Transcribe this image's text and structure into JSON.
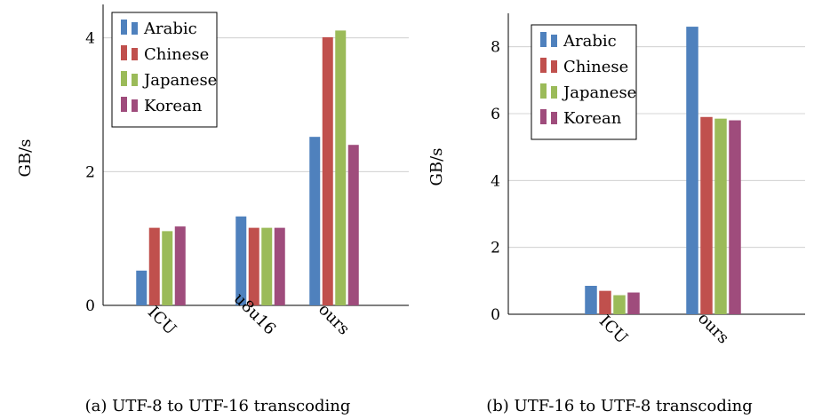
{
  "chart_data": [
    {
      "type": "bar",
      "caption": "(a) UTF-8 to UTF-16 transcoding",
      "ylabel": "GB/s",
      "xlabel": "",
      "ylim": [
        0,
        4.5
      ],
      "yticks": [
        0,
        2,
        4
      ],
      "grid": true,
      "legend_position": "top-left",
      "categories": [
        "ICU",
        "u8u16",
        "ours"
      ],
      "series": [
        {
          "name": "Arabic",
          "color": "#4f81bd",
          "values": [
            0.52,
            1.33,
            2.52
          ]
        },
        {
          "name": "Chinese",
          "color": "#c0504d",
          "values": [
            1.16,
            1.16,
            4.01
          ]
        },
        {
          "name": "Japanese",
          "color": "#9bbb59",
          "values": [
            1.11,
            1.16,
            4.11
          ]
        },
        {
          "name": "Korean",
          "color": "#9f4c7c",
          "values": [
            1.18,
            1.16,
            2.4
          ]
        }
      ]
    },
    {
      "type": "bar",
      "caption": "(b) UTF-16 to UTF-8 transcoding",
      "ylabel": "GB/s",
      "xlabel": "",
      "ylim": [
        0,
        9.0
      ],
      "yticks": [
        0,
        2,
        4,
        6,
        8
      ],
      "grid": true,
      "legend_position": "top-left",
      "categories": [
        "ICU",
        "ours"
      ],
      "series": [
        {
          "name": "Arabic",
          "color": "#4f81bd",
          "values": [
            0.85,
            8.6
          ]
        },
        {
          "name": "Chinese",
          "color": "#c0504d",
          "values": [
            0.7,
            5.9
          ]
        },
        {
          "name": "Japanese",
          "color": "#9bbb59",
          "values": [
            0.57,
            5.85
          ]
        },
        {
          "name": "Korean",
          "color": "#9f4c7c",
          "values": [
            0.65,
            5.8
          ]
        }
      ]
    }
  ]
}
